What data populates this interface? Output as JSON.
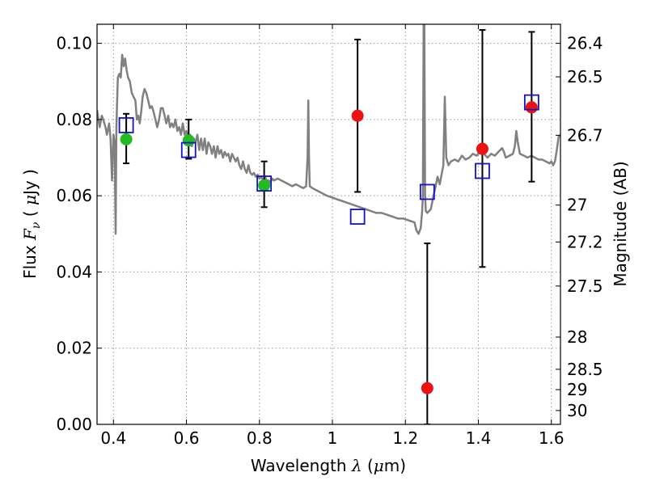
{
  "chart_data": {
    "type": "scatter",
    "title": "",
    "xlabel": {
      "prefix": "Wavelength",
      "symbol": "λ",
      "unit_open": " (",
      "unit_mu": "μ",
      "unit_rest": "m)"
    },
    "ylabel": {
      "prefix": "Flux",
      "symbol": "F",
      "sub": "ν",
      "unit_open": " ( ",
      "unit_mu": "μ",
      "unit_rest": "Jy )"
    },
    "y2label": "Magnitude (AB)",
    "xlim": [
      0.355,
      1.625
    ],
    "ylim": [
      0.0,
      0.105
    ],
    "xticks": [
      {
        "v": 0.4,
        "label": "0.4"
      },
      {
        "v": 0.6,
        "label": "0.6"
      },
      {
        "v": 0.8,
        "label": "0.8"
      },
      {
        "v": 1.0,
        "label": "1"
      },
      {
        "v": 1.2,
        "label": "1.2"
      },
      {
        "v": 1.4,
        "label": "1.4"
      },
      {
        "v": 1.6,
        "label": "1.6"
      }
    ],
    "yticks": [
      {
        "v": 0.0,
        "label": "0.00"
      },
      {
        "v": 0.02,
        "label": "0.02"
      },
      {
        "v": 0.04,
        "label": "0.04"
      },
      {
        "v": 0.06,
        "label": "0.06"
      },
      {
        "v": 0.08,
        "label": "0.08"
      },
      {
        "v": 0.1,
        "label": "0.10"
      }
    ],
    "mag_ticks": [
      {
        "mag": 26.4,
        "label": "26.4"
      },
      {
        "mag": 26.5,
        "label": "26.5"
      },
      {
        "mag": 26.7,
        "label": "26.7"
      },
      {
        "mag": 27,
        "label": "27"
      },
      {
        "mag": 27.2,
        "label": "27.2"
      },
      {
        "mag": 27.5,
        "label": "27.5"
      },
      {
        "mag": 28,
        "label": "28"
      },
      {
        "mag": 28.5,
        "label": "28.5"
      },
      {
        "mag": 29,
        "label": "29"
      },
      {
        "mag": 30,
        "label": "30"
      }
    ],
    "grid": true,
    "colors": {
      "sed": "#808080",
      "green": "#22bb22",
      "red": "#ee1111",
      "box": "#1111cc",
      "err": "#000000"
    },
    "series": [
      {
        "name": "SED model",
        "kind": "line",
        "points": [
          [
            0.355,
            0.0825
          ],
          [
            0.362,
            0.078
          ],
          [
            0.368,
            0.081
          ],
          [
            0.372,
            0.08
          ],
          [
            0.378,
            0.078
          ],
          [
            0.382,
            0.076
          ],
          [
            0.388,
            0.079
          ],
          [
            0.392,
            0.075
          ],
          [
            0.396,
            0.064
          ],
          [
            0.4,
            0.076
          ],
          [
            0.403,
            0.074
          ],
          [
            0.406,
            0.05
          ],
          [
            0.408,
            0.078
          ],
          [
            0.412,
            0.091
          ],
          [
            0.416,
            0.092
          ],
          [
            0.42,
            0.091
          ],
          [
            0.424,
            0.097
          ],
          [
            0.428,
            0.094
          ],
          [
            0.432,
            0.096
          ],
          [
            0.436,
            0.093
          ],
          [
            0.44,
            0.091
          ],
          [
            0.445,
            0.09
          ],
          [
            0.45,
            0.087
          ],
          [
            0.455,
            0.086
          ],
          [
            0.46,
            0.085
          ],
          [
            0.464,
            0.08
          ],
          [
            0.468,
            0.081
          ],
          [
            0.472,
            0.079
          ],
          [
            0.476,
            0.082
          ],
          [
            0.48,
            0.086
          ],
          [
            0.485,
            0.088
          ],
          [
            0.49,
            0.087
          ],
          [
            0.495,
            0.085
          ],
          [
            0.5,
            0.083
          ],
          [
            0.505,
            0.0835
          ],
          [
            0.51,
            0.082
          ],
          [
            0.515,
            0.08
          ],
          [
            0.52,
            0.078
          ],
          [
            0.525,
            0.08
          ],
          [
            0.53,
            0.083
          ],
          [
            0.535,
            0.083
          ],
          [
            0.54,
            0.081
          ],
          [
            0.545,
            0.079
          ],
          [
            0.55,
            0.081
          ],
          [
            0.555,
            0.078
          ],
          [
            0.56,
            0.079
          ],
          [
            0.565,
            0.078
          ],
          [
            0.57,
            0.08
          ],
          [
            0.575,
            0.077
          ],
          [
            0.58,
            0.078
          ],
          [
            0.585,
            0.076
          ],
          [
            0.59,
            0.079
          ],
          [
            0.595,
            0.076
          ],
          [
            0.6,
            0.077
          ],
          [
            0.605,
            0.075
          ],
          [
            0.61,
            0.076
          ],
          [
            0.615,
            0.073
          ],
          [
            0.62,
            0.075
          ],
          [
            0.625,
            0.074
          ],
          [
            0.63,
            0.076
          ],
          [
            0.635,
            0.072
          ],
          [
            0.64,
            0.075
          ],
          [
            0.645,
            0.072
          ],
          [
            0.65,
            0.075
          ],
          [
            0.655,
            0.071
          ],
          [
            0.66,
            0.074
          ],
          [
            0.665,
            0.073
          ],
          [
            0.67,
            0.071
          ],
          [
            0.675,
            0.073
          ],
          [
            0.68,
            0.07
          ],
          [
            0.685,
            0.073
          ],
          [
            0.69,
            0.071
          ],
          [
            0.695,
            0.072
          ],
          [
            0.7,
            0.07
          ],
          [
            0.705,
            0.0715
          ],
          [
            0.71,
            0.0705
          ],
          [
            0.715,
            0.071
          ],
          [
            0.72,
            0.069
          ],
          [
            0.725,
            0.071
          ],
          [
            0.73,
            0.07
          ],
          [
            0.735,
            0.069
          ],
          [
            0.74,
            0.07
          ],
          [
            0.745,
            0.068
          ],
          [
            0.75,
            0.067
          ],
          [
            0.755,
            0.069
          ],
          [
            0.76,
            0.067
          ],
          [
            0.765,
            0.066
          ],
          [
            0.77,
            0.068
          ],
          [
            0.775,
            0.066
          ],
          [
            0.78,
            0.0655
          ],
          [
            0.785,
            0.066
          ],
          [
            0.79,
            0.065
          ],
          [
            0.795,
            0.0655
          ],
          [
            0.8,
            0.0645
          ],
          [
            0.805,
            0.065
          ],
          [
            0.81,
            0.064
          ],
          [
            0.815,
            0.065
          ],
          [
            0.82,
            0.064
          ],
          [
            0.825,
            0.064
          ],
          [
            0.83,
            0.0635
          ],
          [
            0.835,
            0.0645
          ],
          [
            0.84,
            0.064
          ],
          [
            0.85,
            0.0645
          ],
          [
            0.86,
            0.064
          ],
          [
            0.87,
            0.0635
          ],
          [
            0.88,
            0.063
          ],
          [
            0.89,
            0.0625
          ],
          [
            0.9,
            0.063
          ],
          [
            0.91,
            0.0625
          ],
          [
            0.92,
            0.062
          ],
          [
            0.928,
            0.0625
          ],
          [
            0.932,
            0.07
          ],
          [
            0.934,
            0.085
          ],
          [
            0.936,
            0.07
          ],
          [
            0.938,
            0.0625
          ],
          [
            0.945,
            0.062
          ],
          [
            0.955,
            0.0615
          ],
          [
            0.965,
            0.061
          ],
          [
            0.975,
            0.0605
          ],
          [
            0.985,
            0.06
          ],
          [
            1.0,
            0.0595
          ],
          [
            1.015,
            0.059
          ],
          [
            1.03,
            0.0585
          ],
          [
            1.045,
            0.058
          ],
          [
            1.06,
            0.0575
          ],
          [
            1.075,
            0.057
          ],
          [
            1.09,
            0.0565
          ],
          [
            1.105,
            0.056
          ],
          [
            1.12,
            0.0555
          ],
          [
            1.135,
            0.0555
          ],
          [
            1.15,
            0.055
          ],
          [
            1.165,
            0.0545
          ],
          [
            1.18,
            0.054
          ],
          [
            1.195,
            0.054
          ],
          [
            1.21,
            0.0535
          ],
          [
            1.225,
            0.053
          ],
          [
            1.23,
            0.051
          ],
          [
            1.236,
            0.05
          ],
          [
            1.242,
            0.0515
          ],
          [
            1.246,
            0.056
          ],
          [
            1.248,
            0.06
          ],
          [
            1.25,
            0.105
          ],
          [
            1.252,
            0.105
          ],
          [
            1.254,
            0.06
          ],
          [
            1.256,
            0.056
          ],
          [
            1.26,
            0.0555
          ],
          [
            1.265,
            0.056
          ],
          [
            1.27,
            0.0565
          ],
          [
            1.276,
            0.0595
          ],
          [
            1.282,
            0.062
          ],
          [
            1.288,
            0.065
          ],
          [
            1.294,
            0.063
          ],
          [
            1.3,
            0.066
          ],
          [
            1.304,
            0.068
          ],
          [
            1.308,
            0.086
          ],
          [
            1.312,
            0.07
          ],
          [
            1.318,
            0.068
          ],
          [
            1.325,
            0.069
          ],
          [
            1.335,
            0.0695
          ],
          [
            1.345,
            0.069
          ],
          [
            1.355,
            0.0705
          ],
          [
            1.365,
            0.0695
          ],
          [
            1.375,
            0.07
          ],
          [
            1.385,
            0.071
          ],
          [
            1.395,
            0.0705
          ],
          [
            1.405,
            0.0715
          ],
          [
            1.415,
            0.071
          ],
          [
            1.425,
            0.07
          ],
          [
            1.435,
            0.071
          ],
          [
            1.445,
            0.0705
          ],
          [
            1.455,
            0.0715
          ],
          [
            1.465,
            0.0725
          ],
          [
            1.47,
            0.0715
          ],
          [
            1.475,
            0.07
          ],
          [
            1.485,
            0.0705
          ],
          [
            1.495,
            0.071
          ],
          [
            1.5,
            0.073
          ],
          [
            1.504,
            0.077
          ],
          [
            1.508,
            0.074
          ],
          [
            1.514,
            0.071
          ],
          [
            1.525,
            0.0705
          ],
          [
            1.535,
            0.07
          ],
          [
            1.545,
            0.0705
          ],
          [
            1.555,
            0.07
          ],
          [
            1.565,
            0.0695
          ],
          [
            1.575,
            0.0695
          ],
          [
            1.585,
            0.069
          ],
          [
            1.595,
            0.0685
          ],
          [
            1.6,
            0.069
          ],
          [
            1.605,
            0.068
          ],
          [
            1.61,
            0.069
          ],
          [
            1.615,
            0.072
          ],
          [
            1.62,
            0.0755
          ],
          [
            1.625,
            0.076
          ]
        ]
      },
      {
        "name": "Green detections",
        "kind": "points_err",
        "points": [
          {
            "x": 0.435,
            "y": 0.0748,
            "ylo": 0.0685,
            "yhi": 0.0815
          },
          {
            "x": 0.606,
            "y": 0.0745,
            "ylo": 0.0697,
            "yhi": 0.08
          },
          {
            "x": 0.813,
            "y": 0.0627,
            "ylo": 0.057,
            "yhi": 0.069
          }
        ]
      },
      {
        "name": "Red detections",
        "kind": "points_err",
        "points": [
          {
            "x": 1.069,
            "y": 0.081,
            "ylo": 0.061,
            "yhi": 0.101
          },
          {
            "x": 1.26,
            "y": 0.0095,
            "ylo": 0.0,
            "yhi": 0.0475
          },
          {
            "x": 1.411,
            "y": 0.0723,
            "ylo": 0.0413,
            "yhi": 0.1035
          },
          {
            "x": 1.546,
            "y": 0.0832,
            "ylo": 0.0637,
            "yhi": 0.103
          }
        ]
      },
      {
        "name": "Model band fluxes",
        "kind": "squares",
        "points": [
          {
            "x": 0.435,
            "y": 0.0785
          },
          {
            "x": 0.606,
            "y": 0.072
          },
          {
            "x": 0.813,
            "y": 0.0632
          },
          {
            "x": 1.069,
            "y": 0.0545
          },
          {
            "x": 1.26,
            "y": 0.061
          },
          {
            "x": 1.411,
            "y": 0.0665
          },
          {
            "x": 1.546,
            "y": 0.0845
          }
        ]
      }
    ]
  }
}
